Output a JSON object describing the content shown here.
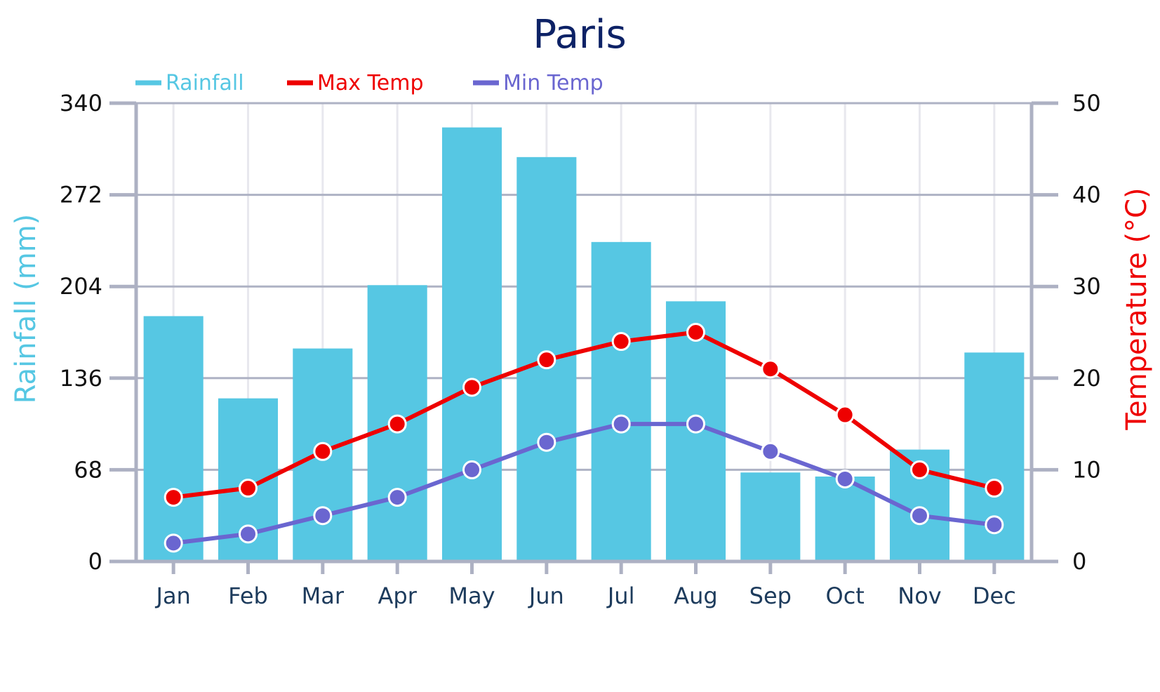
{
  "chart_data": {
    "type": "bar",
    "title": "Paris",
    "categories": [
      "Jan",
      "Feb",
      "Mar",
      "Apr",
      "May",
      "Jun",
      "Jul",
      "Aug",
      "Sep",
      "Oct",
      "Nov",
      "Dec"
    ],
    "series": [
      {
        "name": "Rainfall",
        "type": "bar",
        "axis": "left",
        "color": "#56c7e3",
        "values": [
          182,
          121,
          158,
          205,
          322,
          300,
          237,
          193,
          66,
          63,
          83,
          155
        ]
      },
      {
        "name": "Max Temp",
        "type": "line",
        "axis": "right",
        "color": "#ee0000",
        "values": [
          7,
          8,
          12,
          15,
          19,
          22,
          24,
          25,
          21,
          16,
          10,
          8
        ]
      },
      {
        "name": "Min Temp",
        "type": "line",
        "axis": "right",
        "color": "#6a66d0",
        "values": [
          2,
          3,
          5,
          7,
          10,
          13,
          15,
          15,
          12,
          9,
          5,
          4
        ]
      }
    ],
    "ylabel": "Rainfall (mm)",
    "ylabel_right": "Temperature (°C)",
    "ylim": [
      0,
      340
    ],
    "yticks": [
      0,
      68,
      136,
      204,
      272,
      340
    ],
    "ylim_right": [
      0,
      50
    ],
    "yticks_right": [
      0,
      10,
      20,
      30,
      40,
      50
    ],
    "legend_position": "top-left",
    "grid": true,
    "colors": {
      "title": "#0d2266",
      "rainfall_label": "#56c7e3",
      "temp_label": "#ee0000",
      "axis": "#adb1c3",
      "grid_h": "#aeb2c4",
      "grid_v": "#e8e8ee",
      "tick_text": "#111111",
      "category_text": "#1d3b5c"
    }
  }
}
